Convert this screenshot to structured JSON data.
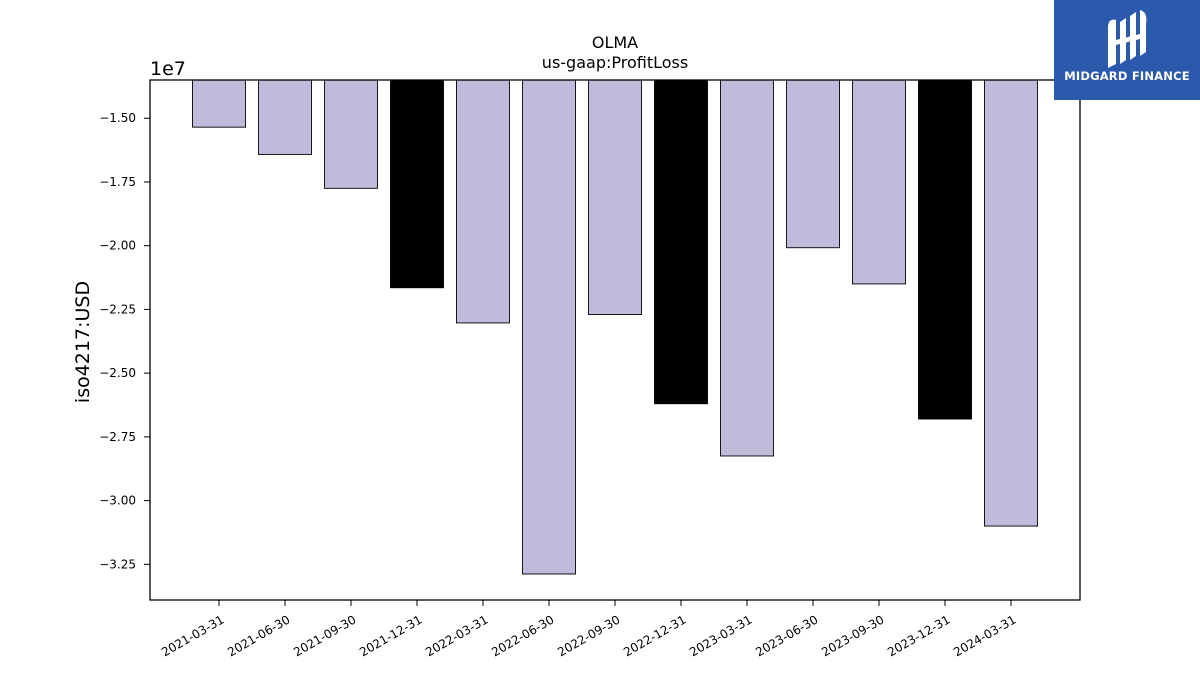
{
  "chart_data": {
    "type": "bar",
    "title": "OLMA",
    "subtitle": "us-gaap:ProfitLoss",
    "ylabel": "iso4217:USD",
    "xlabel": "",
    "offset_label": "1e7",
    "categories": [
      "2021-03-31",
      "2021-06-30",
      "2021-09-30",
      "2021-12-31",
      "2022-03-31",
      "2022-06-30",
      "2022-09-30",
      "2022-12-31",
      "2023-03-31",
      "2023-06-30",
      "2023-09-30",
      "2023-12-31",
      "2024-03-31"
    ],
    "values": [
      -15350000,
      -16420000,
      -17750000,
      -21650000,
      -23030000,
      -32880000,
      -22700000,
      -26200000,
      -28250000,
      -20080000,
      -21500000,
      -26800000,
      -31000000
    ],
    "highlight": [
      false,
      false,
      false,
      true,
      false,
      false,
      false,
      true,
      false,
      false,
      false,
      true,
      false
    ],
    "ylim": [
      -33900000,
      -13500000
    ],
    "yticks": [
      -15000000,
      -17500000,
      -20000000,
      -22500000,
      -25000000,
      -27500000,
      -30000000,
      -32500000
    ],
    "ytick_labels": [
      "−1.50",
      "−1.75",
      "−2.00",
      "−2.25",
      "−2.50",
      "−2.75",
      "−3.00",
      "−3.25"
    ],
    "grid": false,
    "colors": {
      "bar": "#bebbdb",
      "highlight": "#000000",
      "edge": "#000000"
    }
  },
  "logo": {
    "text": "MIDGARD FINANCE",
    "color": "#2b59ab"
  }
}
